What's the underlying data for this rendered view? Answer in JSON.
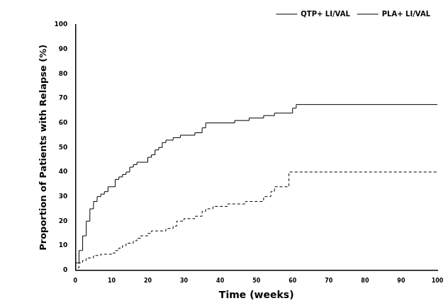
{
  "chart_data": {
    "type": "line",
    "x_label": "Time (weeks)",
    "y_label": "Proportion of Patients with Relapse (%)",
    "xlim": [
      0,
      100
    ],
    "xticks": [
      0,
      10,
      20,
      30,
      40,
      50,
      60,
      70,
      80,
      90,
      100
    ],
    "ylim": [
      0,
      100
    ],
    "yticks": [
      0,
      10,
      20,
      30,
      40,
      50,
      60,
      70,
      80,
      90,
      100
    ],
    "grid": false,
    "legend": "top right",
    "series": [
      {
        "name": "QTP+ LI/VAL",
        "color": "#000000",
        "line_style": "dashed",
        "x": [
          0,
          1,
          2,
          3,
          5,
          7,
          10,
          11,
          12,
          13,
          14,
          16,
          17,
          18,
          20,
          21,
          25,
          27,
          28,
          30,
          33,
          35,
          36,
          38,
          42,
          47,
          52,
          54,
          55,
          59,
          60,
          100
        ],
        "values": [
          0,
          1,
          3,
          4,
          5,
          6,
          6.5,
          7,
          8,
          9,
          10,
          11,
          12,
          13,
          14,
          15,
          16,
          17,
          18,
          20,
          21,
          22,
          24,
          25,
          26,
          27,
          28,
          30,
          32,
          34,
          40,
          40
        ]
      },
      {
        "name": "PLA+ LI/VAL",
        "color": "#000000",
        "line_style": "solid",
        "x": [
          0,
          1,
          2,
          3,
          4,
          5,
          6,
          7,
          8,
          9,
          11,
          12,
          13,
          14,
          15,
          16,
          17,
          20,
          21,
          22,
          23,
          24,
          25,
          27,
          29,
          33,
          35,
          36,
          44,
          48,
          52,
          55,
          60,
          61,
          63,
          100
        ],
        "values": [
          0,
          3,
          8,
          14,
          20,
          25,
          28,
          30,
          31,
          32,
          34,
          37,
          38,
          39,
          40,
          42,
          43,
          44,
          46,
          47,
          49,
          50,
          52,
          53,
          54,
          55,
          56,
          58,
          60,
          61,
          62,
          63,
          64,
          66,
          67.5,
          67.5
        ]
      }
    ]
  }
}
